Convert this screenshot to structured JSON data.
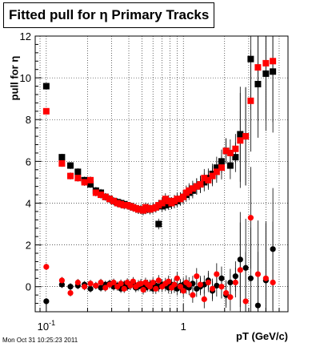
{
  "chart_data": {
    "type": "scatter",
    "title": "Fitted pull for η  Primary Tracks",
    "xlabel": "pT (GeV/c)",
    "ylabel": "pull for η",
    "x_scale": "log",
    "xlim": [
      0.083,
      5.8
    ],
    "ylim": [
      -1.2,
      12
    ],
    "x_ticks": [
      {
        "value": 0.1,
        "label": "10^-1"
      },
      {
        "value": 1,
        "label": "1"
      }
    ],
    "y_ticks": [
      0,
      2,
      4,
      6,
      8,
      10,
      12
    ],
    "grid": true,
    "series": [
      {
        "color": "#000000",
        "marker": "square",
        "x": [
          0.1,
          0.13,
          0.15,
          0.17,
          0.19,
          0.21,
          0.23,
          0.25,
          0.27,
          0.29,
          0.31,
          0.33,
          0.35,
          0.37,
          0.39,
          0.41,
          0.43,
          0.45,
          0.47,
          0.49,
          0.51,
          0.53,
          0.55,
          0.57,
          0.6,
          0.63,
          0.66,
          0.7,
          0.74,
          0.78,
          0.82,
          0.86,
          0.9,
          0.95,
          1.0,
          1.05,
          1.1,
          1.17,
          1.25,
          1.33,
          1.42,
          1.52,
          1.63,
          1.75,
          1.9,
          2.05,
          2.2,
          2.4,
          2.6,
          2.85,
          3.1,
          3.5,
          4.0,
          4.5
        ],
        "y": [
          9.6,
          6.2,
          5.8,
          5.5,
          5.1,
          4.9,
          4.6,
          4.5,
          4.3,
          4.2,
          4.1,
          4.05,
          4.0,
          3.95,
          3.9,
          3.85,
          3.8,
          3.75,
          3.7,
          3.7,
          3.65,
          3.7,
          3.75,
          3.7,
          3.75,
          3.8,
          3.0,
          3.85,
          3.9,
          3.95,
          4.0,
          4.05,
          4.1,
          4.2,
          4.3,
          4.4,
          4.5,
          4.6,
          4.8,
          4.9,
          5.0,
          5.2,
          5.4,
          5.7,
          6.0,
          6.5,
          5.8,
          6.2,
          7.3,
          7.2,
          10.9,
          9.7,
          10.2,
          10.3
        ]
      },
      {
        "color": "#ff0000",
        "marker": "square",
        "x": [
          0.1,
          0.13,
          0.15,
          0.17,
          0.19,
          0.21,
          0.23,
          0.25,
          0.27,
          0.29,
          0.31,
          0.33,
          0.35,
          0.37,
          0.39,
          0.41,
          0.43,
          0.45,
          0.47,
          0.49,
          0.51,
          0.53,
          0.55,
          0.57,
          0.6,
          0.63,
          0.66,
          0.7,
          0.74,
          0.78,
          0.82,
          0.86,
          0.9,
          0.95,
          1.0,
          1.05,
          1.1,
          1.17,
          1.25,
          1.33,
          1.42,
          1.52,
          1.63,
          1.75,
          1.9,
          2.05,
          2.2,
          2.4,
          2.6,
          2.85,
          3.1,
          3.5,
          4.0,
          4.5
        ],
        "y": [
          8.4,
          5.9,
          5.3,
          5.2,
          5.0,
          5.1,
          4.5,
          4.4,
          4.3,
          4.2,
          4.1,
          4.0,
          3.95,
          3.9,
          3.9,
          3.85,
          3.8,
          3.75,
          3.7,
          3.7,
          3.65,
          3.8,
          3.75,
          3.7,
          3.75,
          3.8,
          3.9,
          4.0,
          4.2,
          4.1,
          4.0,
          4.1,
          4.2,
          4.2,
          4.3,
          4.5,
          4.6,
          4.7,
          4.8,
          4.9,
          5.2,
          5.1,
          5.3,
          5.5,
          5.7,
          6.5,
          6.4,
          6.6,
          7.0,
          7.2,
          8.9,
          10.5,
          10.7,
          10.8
        ]
      },
      {
        "color": "#000000",
        "marker": "circle",
        "x": [
          0.1,
          0.13,
          0.15,
          0.17,
          0.19,
          0.21,
          0.23,
          0.25,
          0.27,
          0.29,
          0.31,
          0.33,
          0.35,
          0.37,
          0.39,
          0.41,
          0.43,
          0.45,
          0.47,
          0.49,
          0.51,
          0.53,
          0.55,
          0.57,
          0.6,
          0.63,
          0.66,
          0.7,
          0.74,
          0.78,
          0.82,
          0.86,
          0.9,
          0.95,
          1.0,
          1.05,
          1.1,
          1.17,
          1.25,
          1.33,
          1.42,
          1.52,
          1.63,
          1.75,
          1.9,
          2.05,
          2.2,
          2.4,
          2.6,
          2.85,
          3.1,
          3.5,
          4.0,
          4.5
        ],
        "y": [
          -0.7,
          0.1,
          0.0,
          0.05,
          0.1,
          -0.1,
          0.05,
          -0.05,
          0.1,
          0.15,
          0.0,
          0.05,
          -0.1,
          0.1,
          0.0,
          0.05,
          0.1,
          -0.05,
          0.0,
          0.1,
          0.05,
          -0.05,
          0.0,
          0.1,
          -0.1,
          0.05,
          0.0,
          0.1,
          0.05,
          -0.05,
          0.1,
          0.0,
          -0.1,
          0.05,
          0.1,
          0.0,
          -0.05,
          0.15,
          -0.1,
          0.0,
          0.1,
          0.3,
          -0.2,
          0.05,
          0.4,
          -0.4,
          0.2,
          0.5,
          1.3,
          0.9,
          0.4,
          -0.9,
          0.3,
          1.8
        ]
      },
      {
        "color": "#ff0000",
        "marker": "circle",
        "x": [
          0.1,
          0.13,
          0.15,
          0.17,
          0.19,
          0.21,
          0.23,
          0.25,
          0.27,
          0.29,
          0.31,
          0.33,
          0.35,
          0.37,
          0.39,
          0.41,
          0.43,
          0.45,
          0.47,
          0.49,
          0.51,
          0.53,
          0.55,
          0.57,
          0.6,
          0.63,
          0.66,
          0.7,
          0.74,
          0.78,
          0.82,
          0.86,
          0.9,
          0.95,
          1.0,
          1.05,
          1.1,
          1.17,
          1.25,
          1.33,
          1.42,
          1.52,
          1.63,
          1.75,
          1.9,
          2.05,
          2.2,
          2.4,
          2.6,
          2.85,
          3.1,
          3.5,
          4.0,
          4.5
        ],
        "y": [
          0.95,
          0.3,
          -0.3,
          0.2,
          0.0,
          0.15,
          0.05,
          0.2,
          -0.05,
          0.1,
          0.2,
          0.0,
          0.15,
          -0.1,
          0.2,
          0.05,
          0.25,
          0.0,
          0.1,
          0.15,
          -0.15,
          0.2,
          0.1,
          0.0,
          0.2,
          -0.1,
          0.3,
          0.0,
          0.15,
          0.25,
          -0.05,
          0.1,
          0.4,
          0.0,
          -0.2,
          0.2,
          0.1,
          -0.4,
          0.5,
          0.1,
          -0.6,
          0.2,
          -0.1,
          0.6,
          0.0,
          -0.3,
          -0.5,
          0.2,
          0.8,
          -0.7,
          3.3,
          0.6,
          0.4,
          0.2
        ]
      }
    ]
  },
  "stamp": "Mon Oct 31 10:25:23 2011"
}
